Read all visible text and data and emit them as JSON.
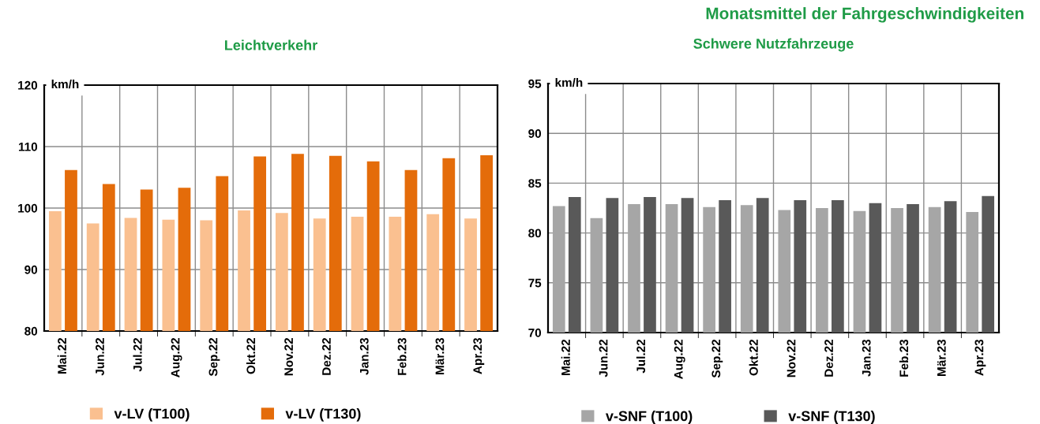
{
  "chart_data": [
    {
      "type": "bar",
      "title": "Leichtverkehr",
      "ylabel": "km/h",
      "categories": [
        "Mai.22",
        "Jun.22",
        "Jul.22",
        "Aug.22",
        "Sep.22",
        "Okt.22",
        "Nov.22",
        "Dez.22",
        "Jan.23",
        "Feb.23",
        "Mär.23",
        "Apr.23"
      ],
      "series": [
        {
          "name": "v-LV (T100)",
          "color": "#fac090",
          "values": [
            99.5,
            97.5,
            98.4,
            98.1,
            98.0,
            99.6,
            99.2,
            98.3,
            98.6,
            98.6,
            99.0,
            98.3
          ]
        },
        {
          "name": "v-LV (T130)",
          "color": "#e46c0a",
          "values": [
            106.2,
            103.9,
            103.0,
            103.3,
            105.2,
            108.4,
            108.8,
            108.5,
            107.6,
            106.2,
            108.1,
            108.6
          ]
        }
      ],
      "ylim": [
        80,
        120
      ],
      "yticks": [
        80,
        90,
        100,
        110,
        120
      ],
      "grid": true,
      "legend": "bottom"
    },
    {
      "type": "bar",
      "title": "Schwere Nutzfahrzeuge",
      "ylabel": "km/h",
      "annotations": [
        "Monatsmittel der Fahrgeschwindigkeiten"
      ],
      "categories": [
        "Mai.22",
        "Jun.22",
        "Jul.22",
        "Aug.22",
        "Sep.22",
        "Okt.22",
        "Nov.22",
        "Dez.22",
        "Jan.23",
        "Feb.23",
        "Mär.23",
        "Apr.23"
      ],
      "series": [
        {
          "name": "v-SNF (T100)",
          "color": "#a6a6a6",
          "values": [
            82.7,
            81.5,
            82.9,
            82.9,
            82.6,
            82.8,
            82.3,
            82.5,
            82.2,
            82.5,
            82.6,
            82.1
          ]
        },
        {
          "name": "v-SNF (T130)",
          "color": "#595959",
          "values": [
            83.6,
            83.5,
            83.6,
            83.5,
            83.3,
            83.5,
            83.3,
            83.3,
            83.0,
            82.9,
            83.2,
            83.7
          ]
        }
      ],
      "ylim": [
        70,
        95
      ],
      "yticks": [
        70,
        75,
        80,
        85,
        90,
        95
      ],
      "grid": true,
      "legend": "bottom"
    }
  ]
}
